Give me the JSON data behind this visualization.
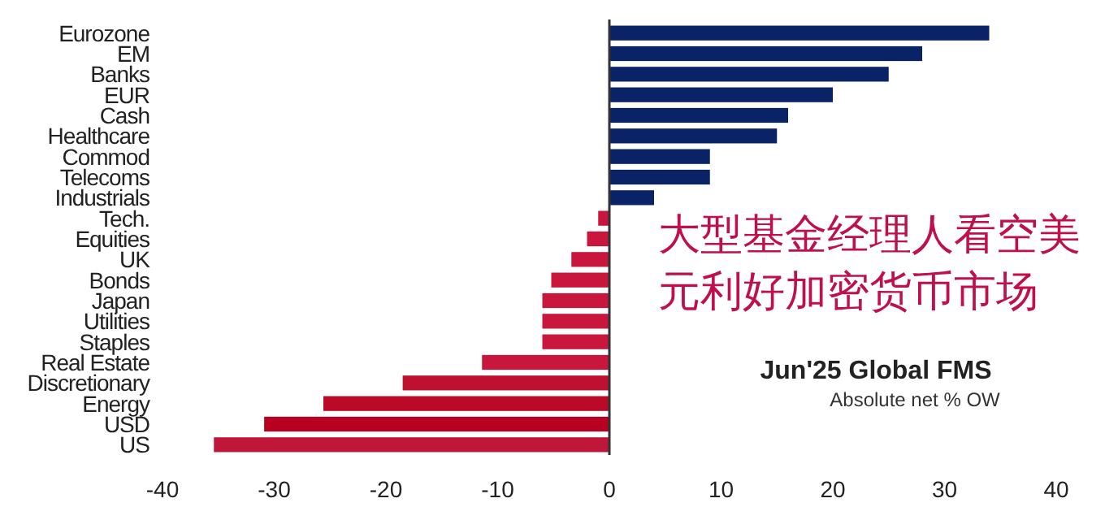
{
  "chart_data": {
    "type": "bar",
    "orientation": "horizontal",
    "title": "Jun'25 Global FMS",
    "subtitle": "Absolute net % OW",
    "annotations": [
      "大型基金经理人看空美元利好加密货币市场"
    ],
    "categories": [
      "Eurozone",
      "EM",
      "Banks",
      "EUR",
      "Cash",
      "Healthcare",
      "Commod",
      "Telecoms",
      "Industrials",
      "Tech.",
      "Equities",
      "UK",
      "Bonds",
      "Japan",
      "Utilities",
      "Staples",
      "Real Estate",
      "Discretionary",
      "Energy",
      "USD",
      "US"
    ],
    "values": [
      34,
      28,
      25,
      20,
      16,
      15,
      9,
      9,
      4,
      -1,
      -2,
      -3.4,
      -5.2,
      -6,
      -6,
      -6,
      -11.4,
      -18.5,
      -25.6,
      -30.9,
      -35.4
    ],
    "colors": [
      "#0a2266",
      "#0a2266",
      "#0a2266",
      "#0a2266",
      "#0a2266",
      "#0a2266",
      "#0a2266",
      "#0a2266",
      "#0a2266",
      "#c8163c",
      "#c8163c",
      "#c8163c",
      "#c8163c",
      "#c8163c",
      "#c8163c",
      "#c8163c",
      "#c8163c",
      "#c01030",
      "#bb0a28",
      "#b80020",
      "#c0163a"
    ],
    "xlim": [
      -40,
      40
    ],
    "xticks": [
      -40,
      -30,
      -20,
      -10,
      0,
      10,
      20,
      30,
      40
    ]
  }
}
